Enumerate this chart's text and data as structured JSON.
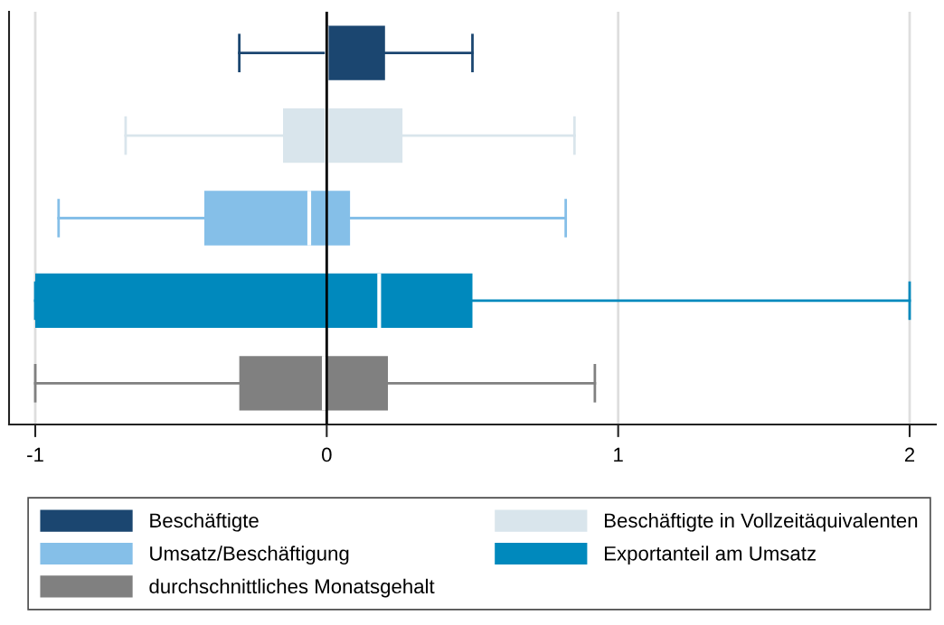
{
  "chart_data": {
    "type": "box",
    "orientation": "horizontal",
    "categories": [
      null,
      null,
      null,
      null,
      null
    ],
    "series": [
      {
        "name": "Beschäftigte",
        "color": "#1b4670",
        "boxes": [
          {
            "low": -0.3,
            "q1": 0.0,
            "median": 0.0,
            "q3": 0.2,
            "high": 0.5
          },
          null,
          null,
          null,
          null
        ]
      },
      {
        "name": "Beschäftigte in Vollzeitäquivalenten",
        "color": "#d9e5ec",
        "boxes": [
          null,
          {
            "low": -0.69,
            "q1": -0.15,
            "median": 0.0,
            "q3": 0.26,
            "high": 0.85
          },
          null,
          null,
          null
        ]
      },
      {
        "name": "Umsatz/Beschäftigung",
        "color": "#85bfe8",
        "boxes": [
          null,
          null,
          {
            "low": -0.92,
            "q1": -0.42,
            "median": -0.06,
            "q3": 0.08,
            "high": 0.82
          },
          null,
          null
        ]
      },
      {
        "name": "Exportanteil am Umsatz",
        "color": "#0089bd",
        "boxes": [
          null,
          null,
          null,
          {
            "low": -1.0,
            "q1": -1.0,
            "median": 0.18,
            "q3": 0.5,
            "high": 2.0
          },
          null
        ]
      },
      {
        "name": "durchschnittliches Monatsgehalt",
        "color": "#808080",
        "boxes": [
          null,
          null,
          null,
          null,
          {
            "low": -1.0,
            "q1": -0.3,
            "median": -0.01,
            "q3": 0.21,
            "high": 0.92
          }
        ]
      }
    ],
    "xlim": [
      -1.09,
      2.09
    ],
    "xticks": [
      -1,
      0,
      1,
      2
    ],
    "grid": "x",
    "tick_labels": "x",
    "legend": "bottom",
    "ref_lines": [
      {
        "axis": "x",
        "value": 0,
        "color": "#000000"
      }
    ]
  }
}
